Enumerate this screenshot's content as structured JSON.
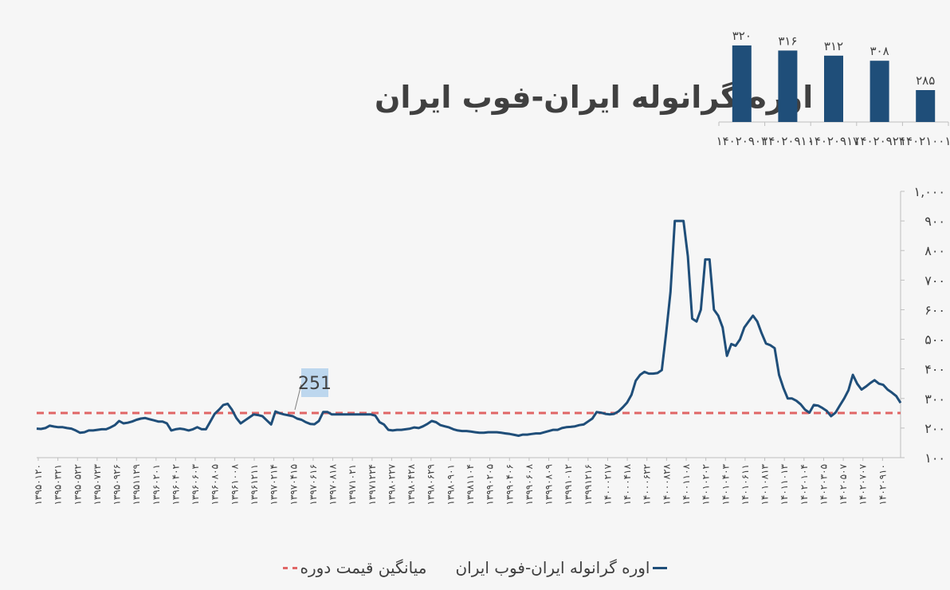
{
  "title": "اوره گرانوله ایران-فوب ایران",
  "colors": {
    "line": "#1f4e79",
    "average": "#e06666",
    "bar": "#1f4e79",
    "callout_bg": "#bdd7ee"
  },
  "legend": {
    "series_label": "اوره گرانوله ایران-فوب ایران",
    "average_label": "میانگین قیمت دوره"
  },
  "chart_data": [
    {
      "type": "bar",
      "categories": [
        "۱۴۰۲۰۹۰۳",
        "۱۴۰۲۰۹۱۰",
        "۱۴۰۲۰۹۱۷",
        "۱۴۰۲۰۹۲۴",
        "۱۴۰۲۱۰۰۱"
      ],
      "values": [
        320,
        316,
        312,
        308,
        285
      ],
      "value_labels": [
        "۳۲۰",
        "۳۱۶",
        "۳۱۲",
        "۳۰۸",
        "۲۸۵"
      ],
      "ylim": [
        200,
        330
      ]
    },
    {
      "type": "line",
      "ylim": [
        100,
        1000
      ],
      "y_ticks": [
        100,
        200,
        300,
        400,
        500,
        600,
        700,
        800,
        900,
        1000
      ],
      "y_tick_labels": [
        "۱۰۰",
        "۲۰۰",
        "۳۰۰",
        "۴۰۰",
        "۵۰۰",
        "۶۰۰",
        "۷۰۰",
        "۸۰۰",
        "۹۰۰",
        "۱,۰۰۰"
      ],
      "x_tick_labels": [
        "۱۳۹۵۰۱۲۰",
        "۱۳۹۵۰۳۲۱",
        "۱۳۹۵۰۵۲۲",
        "۱۳۹۵۰۷۲۳",
        "۱۳۹۵۰۹۲۶",
        "۱۳۹۵۱۱۲۹",
        "۱۳۹۶۰۲۰۱",
        "۱۳۹۶۰۴۰۲",
        "۱۳۹۶۰۶۰۳",
        "۱۳۹۶۰۸۰۵",
        "۱۳۹۶۱۰۰۸",
        "۱۳۹۶۱۲۱۱",
        "۱۳۹۷۰۲۱۴",
        "۱۳۹۷۰۴۱۵",
        "۱۳۹۷۰۶۱۶",
        "۱۳۹۷۰۸۱۸",
        "۱۳۹۷۱۰۲۱",
        "۱۳۹۷۱۲۲۴",
        "۱۳۹۸۰۲۲۷",
        "۱۳۹۸۰۴۲۸",
        "۱۳۹۸۰۶۲۹",
        "۱۳۹۸۰۹۰۱",
        "۱۳۹۸۱۱۰۴",
        "۱۳۹۹۰۲۰۵",
        "۱۳۹۹۰۴۰۶",
        "۱۳۹۹۰۶۰۸",
        "۱۳۹۹۰۸۰۹",
        "۱۳۹۹۱۰۱۲",
        "۱۳۹۹۱۲۱۶",
        "۱۴۰۰۰۲۱۷",
        "۱۴۰۰۰۴۱۸",
        "۱۴۰۰۰۶۲۲",
        "۱۴۰۰۰۸۲۸",
        "۱۴۰۰۱۱۰۸",
        "۱۴۰۱۰۲۰۲",
        "۱۴۰۱۰۴۰۳",
        "۱۴۰۱۰۶۱۱",
        "۱۴۰۱۰۸۱۳",
        "۱۴۰۱۱۰۱۳",
        "۱۴۰۲۰۱۰۴",
        "۱۴۰۲۰۳۰۵",
        "۱۴۰۲۰۵۰۷",
        "۱۴۰۲۰۷۰۷",
        "۱۴۰۲۰۹۱۰"
      ],
      "average": 251,
      "average_label": "251",
      "series": [
        {
          "name": "اوره گرانوله ایران-فوب ایران",
          "points": [
            [
              0,
              198
            ],
            [
              1,
              197
            ],
            [
              2,
              200
            ],
            [
              3,
              208
            ],
            [
              4,
              205
            ],
            [
              5,
              203
            ],
            [
              6,
              203
            ],
            [
              7,
              200
            ],
            [
              8,
              198
            ],
            [
              9,
              192
            ],
            [
              10,
              184
            ],
            [
              11,
              186
            ],
            [
              12,
              192
            ],
            [
              13,
              192
            ],
            [
              14,
              194
            ],
            [
              15,
              196
            ],
            [
              16,
              196
            ],
            [
              17,
              202
            ],
            [
              18,
              210
            ],
            [
              19,
              224
            ],
            [
              20,
              216
            ],
            [
              21,
              218
            ],
            [
              22,
              222
            ],
            [
              23,
              228
            ],
            [
              24,
              232
            ],
            [
              25,
              234
            ],
            [
              26,
              230
            ],
            [
              27,
              226
            ],
            [
              28,
              222
            ],
            [
              29,
              222
            ],
            [
              30,
              216
            ],
            [
              31,
              192
            ],
            [
              32,
              196
            ],
            [
              33,
              198
            ],
            [
              34,
              196
            ],
            [
              35,
              192
            ],
            [
              36,
              196
            ],
            [
              37,
              203
            ],
            [
              38,
              196
            ],
            [
              39,
              196
            ],
            [
              40,
              222
            ],
            [
              41,
              248
            ],
            [
              42,
              262
            ],
            [
              43,
              278
            ],
            [
              44,
              282
            ],
            [
              45,
              262
            ],
            [
              46,
              234
            ],
            [
              47,
              216
            ],
            [
              48,
              226
            ],
            [
              49,
              236
            ],
            [
              50,
              246
            ],
            [
              51,
              244
            ],
            [
              52,
              240
            ],
            [
              53,
              226
            ],
            [
              54,
              212
            ],
            [
              55,
              256
            ],
            [
              56,
              250
            ],
            [
              57,
              246
            ],
            [
              58,
              243
            ],
            [
              59,
              240
            ],
            [
              60,
              232
            ],
            [
              61,
              228
            ],
            [
              62,
              220
            ],
            [
              63,
              214
            ],
            [
              64,
              213
            ],
            [
              65,
              224
            ],
            [
              66,
              254
            ],
            [
              67,
              254
            ],
            [
              68,
              246
            ],
            [
              69,
              246
            ],
            [
              70,
              246
            ],
            [
              71,
              246
            ],
            [
              72,
              246
            ],
            [
              73,
              246
            ],
            [
              74,
              246
            ],
            [
              75,
              246
            ],
            [
              76,
              246
            ],
            [
              77,
              246
            ],
            [
              78,
              242
            ],
            [
              79,
              220
            ],
            [
              80,
              212
            ],
            [
              81,
              194
            ],
            [
              82,
              192
            ],
            [
              83,
              194
            ],
            [
              84,
              194
            ],
            [
              85,
              196
            ],
            [
              86,
              198
            ],
            [
              87,
              202
            ],
            [
              88,
              200
            ],
            [
              89,
              206
            ],
            [
              90,
              214
            ],
            [
              91,
              224
            ],
            [
              92,
              220
            ],
            [
              93,
              210
            ],
            [
              94,
              206
            ],
            [
              95,
              202
            ],
            [
              96,
              196
            ],
            [
              97,
              192
            ],
            [
              98,
              190
            ],
            [
              99,
              190
            ],
            [
              100,
              188
            ],
            [
              101,
              186
            ],
            [
              102,
              184
            ],
            [
              103,
              184
            ],
            [
              104,
              186
            ],
            [
              105,
              186
            ],
            [
              106,
              186
            ],
            [
              107,
              184
            ],
            [
              108,
              182
            ],
            [
              109,
              180
            ],
            [
              110,
              177
            ],
            [
              111,
              174
            ],
            [
              112,
              178
            ],
            [
              113,
              178
            ],
            [
              114,
              180
            ],
            [
              115,
              182
            ],
            [
              116,
              182
            ],
            [
              117,
              186
            ],
            [
              118,
              190
            ],
            [
              119,
              194
            ],
            [
              120,
              194
            ],
            [
              121,
              200
            ],
            [
              122,
              203
            ],
            [
              123,
              204
            ],
            [
              124,
              206
            ],
            [
              125,
              210
            ],
            [
              126,
              212
            ],
            [
              127,
              222
            ],
            [
              128,
              232
            ],
            [
              129,
              254
            ],
            [
              130,
              252
            ],
            [
              131,
              248
            ],
            [
              132,
              246
            ],
            [
              133,
              248
            ],
            [
              134,
              256
            ],
            [
              135,
              270
            ],
            [
              136,
              286
            ],
            [
              137,
              312
            ],
            [
              138,
              360
            ],
            [
              139,
              380
            ],
            [
              140,
              390
            ],
            [
              141,
              384
            ],
            [
              142,
              384
            ],
            [
              143,
              386
            ],
            [
              144,
              396
            ],
            [
              145,
              520
            ],
            [
              146,
              660
            ],
            [
              147,
              900
            ],
            [
              148,
              900
            ],
            [
              149,
              900
            ],
            [
              150,
              780
            ],
            [
              151,
              570
            ],
            [
              152,
              560
            ],
            [
              153,
              600
            ],
            [
              154,
              770
            ],
            [
              155,
              770
            ],
            [
              156,
              600
            ],
            [
              157,
              580
            ],
            [
              158,
              540
            ],
            [
              159,
              444
            ],
            [
              160,
              484
            ],
            [
              161,
              478
            ],
            [
              162,
              500
            ],
            [
              163,
              540
            ],
            [
              164,
              560
            ],
            [
              165,
              580
            ],
            [
              166,
              560
            ],
            [
              167,
              520
            ],
            [
              168,
              486
            ],
            [
              169,
              480
            ],
            [
              170,
              470
            ],
            [
              171,
              380
            ],
            [
              172,
              336
            ],
            [
              173,
              300
            ],
            [
              174,
              300
            ],
            [
              175,
              292
            ],
            [
              176,
              280
            ],
            [
              177,
              262
            ],
            [
              178,
              252
            ],
            [
              179,
              278
            ],
            [
              180,
              276
            ],
            [
              181,
              268
            ],
            [
              182,
              258
            ],
            [
              183,
              240
            ],
            [
              184,
              252
            ],
            [
              185,
              276
            ],
            [
              186,
              300
            ],
            [
              187,
              328
            ],
            [
              188,
              380
            ],
            [
              189,
              350
            ],
            [
              190,
              330
            ],
            [
              191,
              340
            ],
            [
              192,
              352
            ],
            [
              193,
              362
            ],
            [
              194,
              350
            ],
            [
              195,
              346
            ],
            [
              196,
              330
            ],
            [
              197,
              320
            ],
            [
              198,
              308
            ],
            [
              199,
              285
            ]
          ]
        }
      ]
    }
  ]
}
